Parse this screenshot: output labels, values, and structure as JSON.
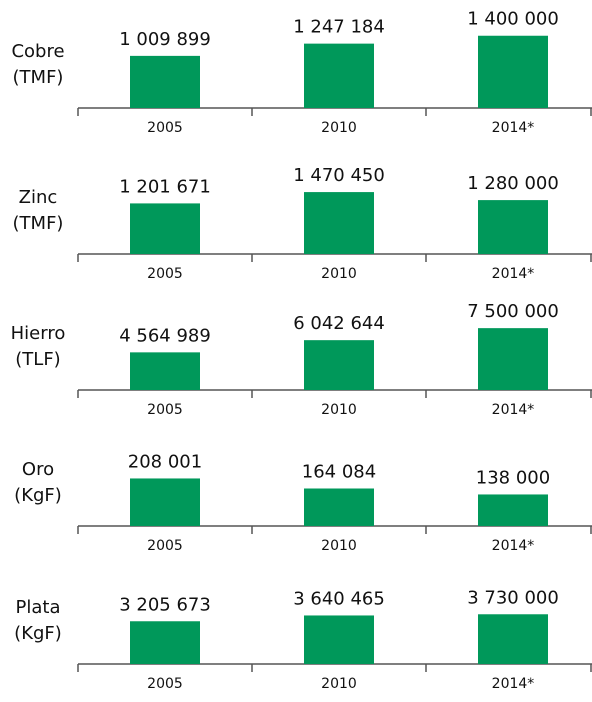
{
  "chart_data": [
    {
      "type": "bar",
      "title": "Cobre",
      "unit": "(TMF)",
      "categories": [
        "2005",
        "2010",
        "2014*"
      ],
      "values": [
        1009899,
        1247184,
        1400000
      ],
      "value_labels": [
        "1 009 899",
        "1 247 184",
        "1 400 000"
      ],
      "color": "#00985a",
      "ylim": [
        0,
        1550000
      ]
    },
    {
      "type": "bar",
      "title": "Zinc",
      "unit": "(TMF)",
      "categories": [
        "2005",
        "2010",
        "2014*"
      ],
      "values": [
        1201671,
        1470450,
        1280000
      ],
      "value_labels": [
        "1 201 671",
        "1 470 450",
        "1 280 000"
      ],
      "color": "#00985a",
      "ylim": [
        0,
        1900000
      ]
    },
    {
      "type": "bar",
      "title": "Hierro",
      "unit": "(TLF)",
      "categories": [
        "2005",
        "2010",
        "2014*"
      ],
      "values": [
        4564989,
        6042644,
        7500000
      ],
      "value_labels": [
        "4 564 989",
        "6 042 644",
        "7 500 000"
      ],
      "color": "#00985a",
      "ylim": [
        0,
        9700000
      ]
    },
    {
      "type": "bar",
      "title": "Oro",
      "unit": "(KgF)",
      "categories": [
        "2005",
        "2010",
        "2014*"
      ],
      "values": [
        208001,
        164084,
        138000
      ],
      "value_labels": [
        "208 001",
        "164 084",
        "138 000"
      ],
      "color": "#00985a",
      "ylim": [
        0,
        350000
      ]
    },
    {
      "type": "bar",
      "title": "Plata",
      "unit": "(KgF)",
      "categories": [
        "2005",
        "2010",
        "2014*"
      ],
      "values": [
        3205673,
        3640465,
        3730000
      ],
      "value_labels": [
        "3 205 673",
        "3 640 465",
        "3 730 000"
      ],
      "color": "#00985a",
      "ylim": [
        0,
        6000000
      ]
    }
  ]
}
